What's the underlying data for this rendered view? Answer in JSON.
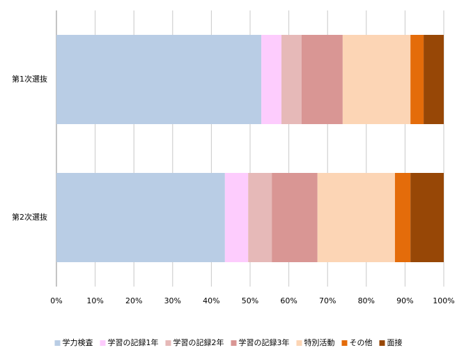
{
  "chart_data": {
    "type": "stacked-bar-horizontal",
    "categories": [
      "第1次選抜",
      "第2次選抜"
    ],
    "series": [
      {
        "name": "学力検査",
        "color": "#b9cde5",
        "values": [
          52.9,
          43.5
        ]
      },
      {
        "name": "学習の記録1年",
        "color": "#fdccfd",
        "values": [
          5.2,
          6.0
        ]
      },
      {
        "name": "学習の記録2年",
        "color": "#e6b9b8",
        "values": [
          5.2,
          6.1
        ]
      },
      {
        "name": "学習の記録3年",
        "color": "#d99694",
        "values": [
          10.6,
          11.8
        ]
      },
      {
        "name": "特別活動",
        "color": "#fcd5b5",
        "values": [
          17.5,
          20.0
        ]
      },
      {
        "name": "その他",
        "color": "#e46c0a",
        "values": [
          3.4,
          4.0
        ]
      },
      {
        "name": "面接",
        "color": "#974706",
        "values": [
          5.2,
          8.6
        ]
      }
    ],
    "xlim": [
      0,
      100
    ],
    "xticks": [
      {
        "value": 0,
        "label": "0%"
      },
      {
        "value": 10,
        "label": "10%"
      },
      {
        "value": 20,
        "label": "20%"
      },
      {
        "value": 30,
        "label": "30%"
      },
      {
        "value": 40,
        "label": "40%"
      },
      {
        "value": 50,
        "label": "50%"
      },
      {
        "value": 60,
        "label": "60%"
      },
      {
        "value": 70,
        "label": "70%"
      },
      {
        "value": 80,
        "label": "80%"
      },
      {
        "value": 90,
        "label": "90%"
      },
      {
        "value": 100,
        "label": "100%"
      }
    ],
    "grid": true,
    "legend": "bottom"
  }
}
